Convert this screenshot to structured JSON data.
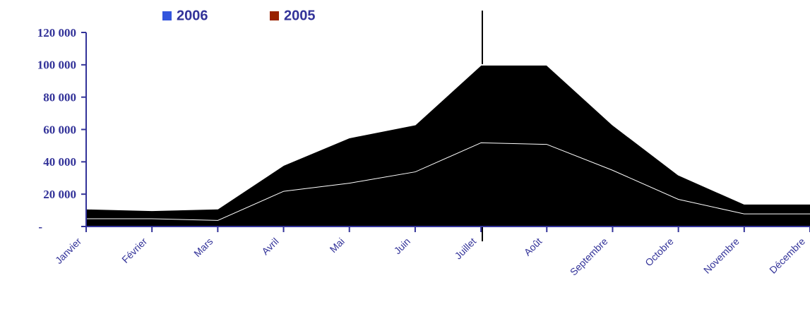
{
  "chart_data": {
    "type": "stacked_area",
    "categories": [
      "Janvier",
      "Février",
      "Mars",
      "Avril",
      "Mai",
      "Juin",
      "Juillet",
      "Août",
      "Septembre",
      "Octobre",
      "Novembre",
      "Décembre"
    ],
    "series": [
      {
        "name": "2006",
        "color": "#3355dd",
        "values": [
          5000,
          5000,
          4000,
          22000,
          27000,
          34000,
          52000,
          51000,
          35000,
          17000,
          8000,
          8000
        ]
      },
      {
        "name": "2005",
        "color": "#992200",
        "values": [
          6000,
          5000,
          7000,
          16000,
          28000,
          29000,
          48000,
          49000,
          28000,
          15000,
          6000,
          6000
        ]
      }
    ],
    "area_color": "#000000",
    "ylim": [
      0,
      120000
    ],
    "yticks": [
      {
        "value": 0,
        "label": "-"
      },
      {
        "value": 20000,
        "label": "20 000"
      },
      {
        "value": 40000,
        "label": "40 000"
      },
      {
        "value": 60000,
        "label": "60 000"
      },
      {
        "value": 80000,
        "label": "80 000"
      },
      {
        "value": 100000,
        "label": "100 000"
      },
      {
        "value": 120000,
        "label": "120 000"
      }
    ],
    "legend": "top"
  }
}
